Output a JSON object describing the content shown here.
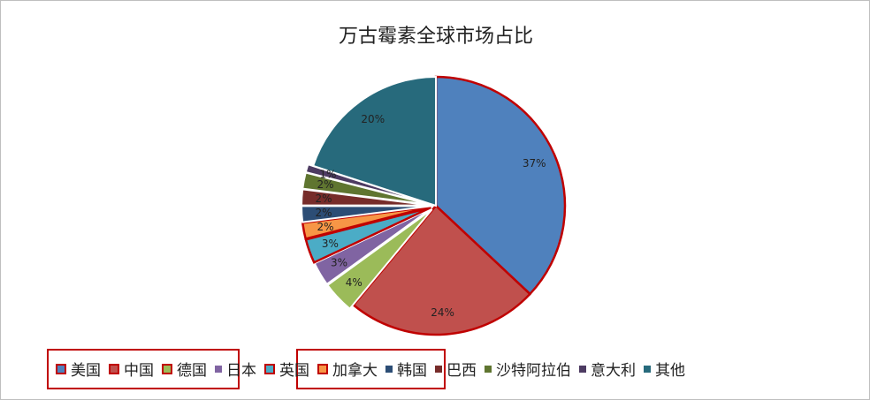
{
  "chart_data": {
    "type": "pie",
    "title": "万古霉素全球市场占比",
    "categories": [
      "美国",
      "中国",
      "德国",
      "日本",
      "英国",
      "加拿大",
      "韩国",
      "巴西",
      "沙特阿拉伯",
      "意大利",
      "其他"
    ],
    "values": [
      37,
      24,
      4,
      3,
      3,
      2,
      2,
      2,
      2,
      1,
      20
    ],
    "labels": [
      "37%",
      "24%",
      "4%",
      "3%",
      "3%",
      "2%",
      "2%",
      "2%",
      "2%",
      "1%",
      "20%"
    ],
    "colors": [
      "#4F81BD",
      "#C0504D",
      "#9BBB59",
      "#8064A2",
      "#4BACC6",
      "#F79646",
      "#2C4D75",
      "#772C2A",
      "#5F7530",
      "#4D3B62",
      "#276A7C"
    ],
    "highlighted": [
      "美国",
      "中国",
      "德国",
      "英国",
      "加拿大"
    ],
    "highlight_color": "#C00000",
    "legend_position": "bottom",
    "start_angle": "top, clockwise"
  }
}
